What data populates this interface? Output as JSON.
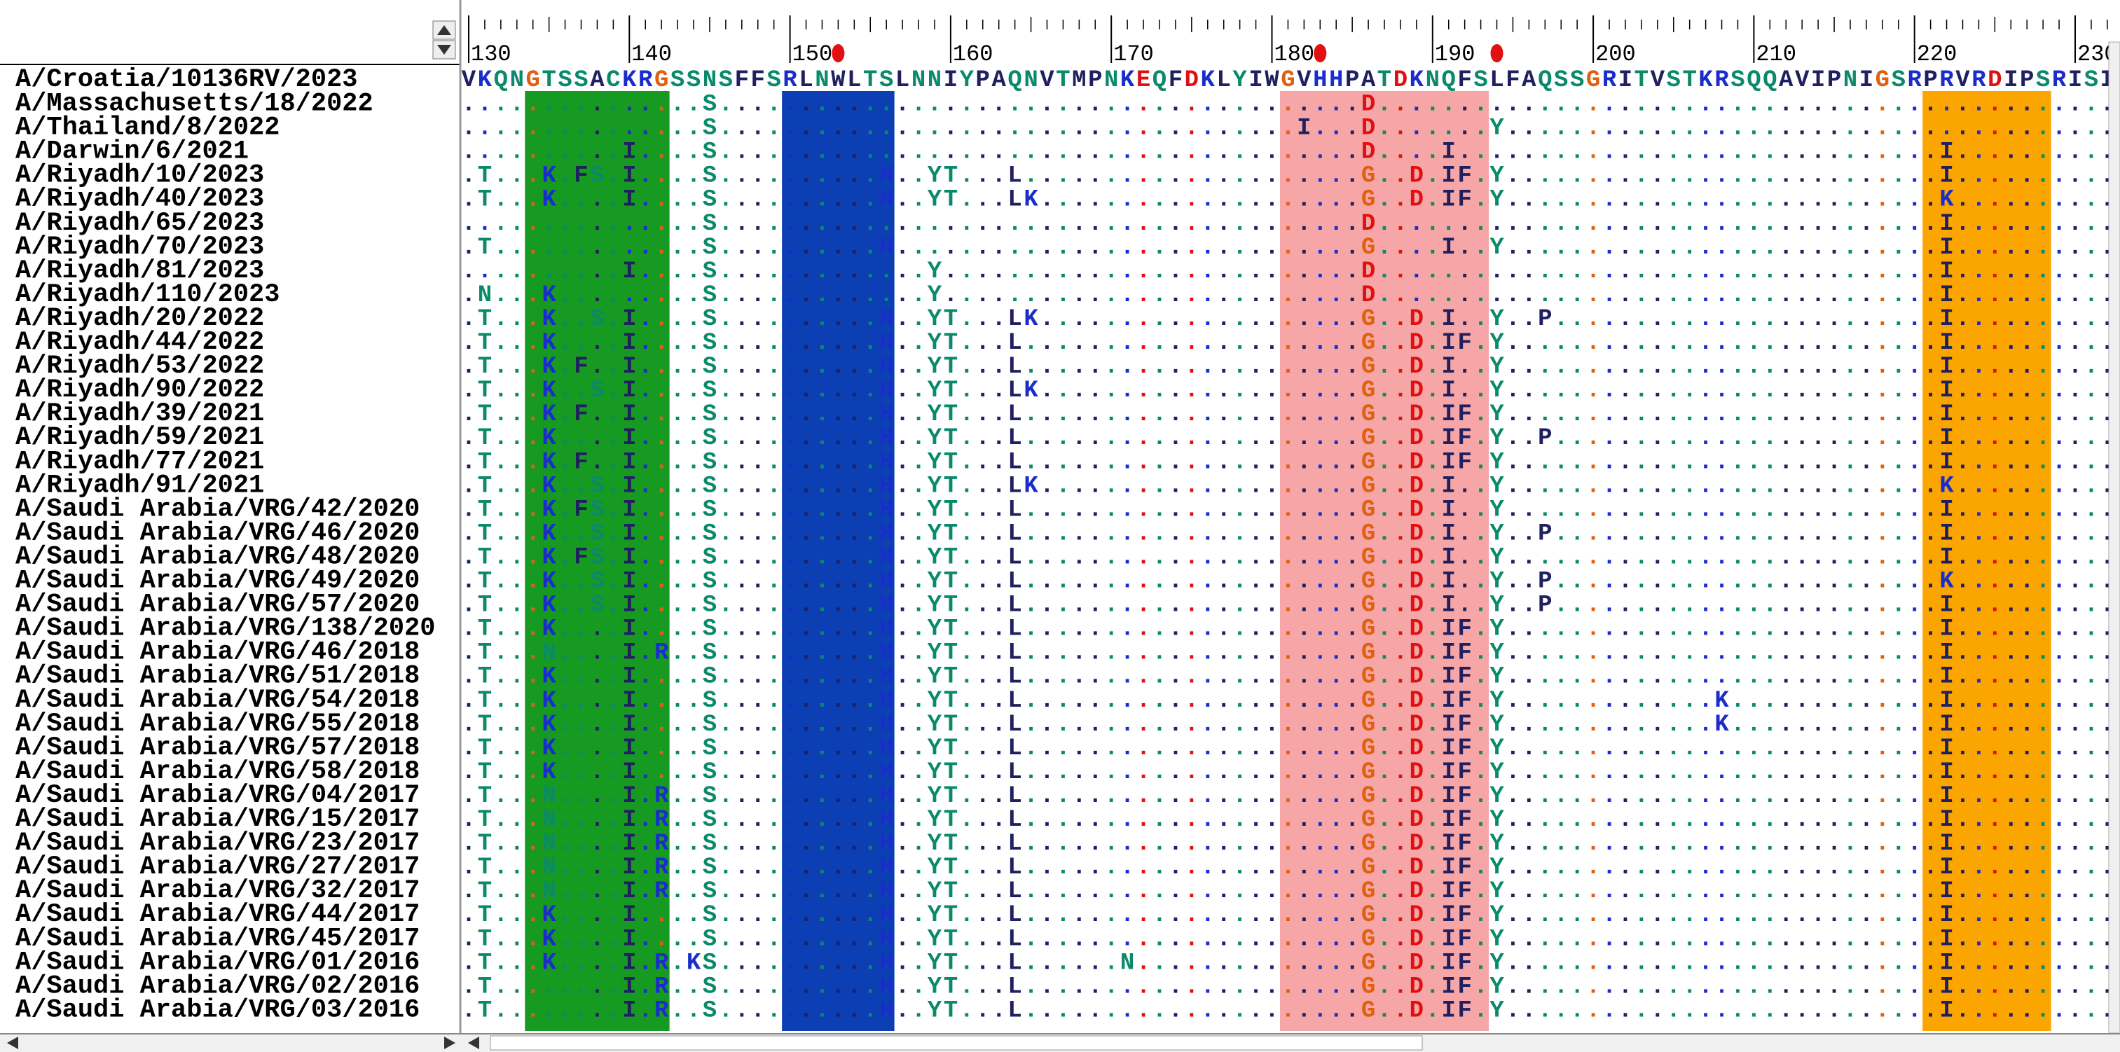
{
  "ruler": {
    "labels": [
      130,
      140,
      150,
      160,
      170,
      180,
      190,
      200,
      210,
      220,
      230
    ],
    "markers": [
      153,
      183,
      194
    ]
  },
  "highlights": [
    {
      "from": 134,
      "to": 142,
      "color": "#169a22"
    },
    {
      "from": 150,
      "to": 156,
      "color": "#0b3fb3"
    },
    {
      "from": 181,
      "to": 193,
      "color": "#f6a6a6"
    },
    {
      "from": 221,
      "to": 228,
      "color": "#fba500"
    }
  ],
  "reference": {
    "name": "A/Croatia/10136RV/2023",
    "sequence": "VKQNGTSSACKRGSSNSFFSRLNWLTSLNNIYPAQNVTMPNKEQFDKLYIWGVHHPATDKNQFSLFAQSSGRITVSTKRSQQAVIPNIGSRPRVRDIPSRISI"
  },
  "rows": [
    {
      "name": "A/Massachusetts/18/2022",
      "sequence": "...............S........................................D.............................................."
    },
    {
      "name": "A/Thailand/8/2022",
      "sequence": "...............S....................................I...D.......Y......................................"
    },
    {
      "name": "A/Darwin/6/2021",
      "sequence": "..........I....S........................................D....I..............................I.........."
    },
    {
      "name": "A/Riyadh/10/2023",
      "sequence": ".T...K.FS.I....S..........H..YT...L.....................G..D.IF.Y...........................I.........."
    },
    {
      "name": "A/Riyadh/40/2023",
      "sequence": ".T...K....I....S..........H..YT...LK....................G..D.IF.Y...........................K.........."
    },
    {
      "name": "A/Riyadh/65/2023",
      "sequence": "...............S........................................D...................................I.........."
    },
    {
      "name": "A/Riyadh/70/2023",
      "sequence": ".T.............S..........H.............................G....I..Y...........................I.........."
    },
    {
      "name": "A/Riyadh/81/2023",
      "sequence": "..........I....S.............Y..........................D...................................I.........."
    },
    {
      "name": "A/Riyadh/110/2023",
      "sequence": ".N...K.........S.............Y..........................D...................................I.........."
    },
    {
      "name": "A/Riyadh/20/2022",
      "sequence": ".T...K..S.I....S..........H..YT...LK....................G..D.I..Y..P........................I.........."
    },
    {
      "name": "A/Riyadh/44/2022",
      "sequence": ".T...K....I....S..........H..YT...L.....................G..D.IF.Y...........................I.........."
    },
    {
      "name": "A/Riyadh/53/2022",
      "sequence": ".T...K.F..I....S..........H..YT...L.....................G..D.I..Y...........................I.........."
    },
    {
      "name": "A/Riyadh/90/2022",
      "sequence": ".T...K..S.I....S..........H..YT...LK....................G..D.I..Y...........................I.........."
    },
    {
      "name": "A/Riyadh/39/2021",
      "sequence": ".T...K.F..I....S..........H..YT...L.....................G..D.IF.Y...........................I.........."
    },
    {
      "name": "A/Riyadh/59/2021",
      "sequence": ".T...K....I....S..........H..YT...L.....................G..D.IF.Y..P........................I.........."
    },
    {
      "name": "A/Riyadh/77/2021",
      "sequence": ".T...K.F..I....S..........H..YT...L.....................G..D.IF.Y...........................I.........."
    },
    {
      "name": "A/Riyadh/91/2021",
      "sequence": ".T...K..S.I....S..........H..YT...LK....................G..D.I..Y...........................K.........."
    },
    {
      "name": "A/Saudi Arabia/VRG/42/2020",
      "sequence": ".T...K.FS.I....S..........H..YT...L.....................G..D.I..Y...........................I.........."
    },
    {
      "name": "A/Saudi Arabia/VRG/46/2020",
      "sequence": ".T...K..S.I....S..........H..YT...L.....................G..D.I..Y..P........................I.........."
    },
    {
      "name": "A/Saudi Arabia/VRG/48/2020",
      "sequence": ".T...K.FS.I....S..........H..YT...L.....................G..D.I..Y...........................I.........."
    },
    {
      "name": "A/Saudi Arabia/VRG/49/2020",
      "sequence": ".T...K..S.I....S..........H..YT...L.....................G..D.I..Y..P........................K.........."
    },
    {
      "name": "A/Saudi Arabia/VRG/57/2020",
      "sequence": ".T...K..S.I....S..........H..YT...L.....................G..D.I..Y..P........................I.........."
    },
    {
      "name": "A/Saudi Arabia/VRG/138/2020",
      "sequence": ".T...K....I....S..........H..YT...L.....................G..D.IF.Y...........................I.........."
    },
    {
      "name": "A/Saudi Arabia/VRG/46/2018",
      "sequence": ".T...N....I.R..S..........H..YT...L.....................G..D.IF.Y...........................I.........."
    },
    {
      "name": "A/Saudi Arabia/VRG/51/2018",
      "sequence": ".T...K....I....S..........H..YT...L.....................G..D.IF.Y...........................I.........."
    },
    {
      "name": "A/Saudi Arabia/VRG/54/2018",
      "sequence": ".T...K....I....S..........H..YT...L.....................G..D.IF.Y.............K.............I.........."
    },
    {
      "name": "A/Saudi Arabia/VRG/55/2018",
      "sequence": ".T...K....I....S..........H..YT...L.....................G..D.IF.Y.............K.............I.........."
    },
    {
      "name": "A/Saudi Arabia/VRG/57/2018",
      "sequence": ".T...K....I....S..........H..YT...L.....................G..D.IF.Y...........................I.........."
    },
    {
      "name": "A/Saudi Arabia/VRG/58/2018",
      "sequence": ".T...K....I....S..........H..YT...L.....................G..D.IF.Y...........................I.........."
    },
    {
      "name": "A/Saudi Arabia/VRG/04/2017",
      "sequence": ".T...N....I.R..S..........H..YT...L.....................G..D.IF.Y...........................I.........."
    },
    {
      "name": "A/Saudi Arabia/VRG/15/2017",
      "sequence": ".T...N....I.R..S..........H..YT...L.....................G..D.IF.Y...........................I.........."
    },
    {
      "name": "A/Saudi Arabia/VRG/23/2017",
      "sequence": ".T...N....I.R..S..........H..YT...L.....................G..D.IF.Y...........................I.........."
    },
    {
      "name": "A/Saudi Arabia/VRG/27/2017",
      "sequence": ".T...N....I.R..S..........H..YT...L.....................G..D.IF.Y...........................I.........."
    },
    {
      "name": "A/Saudi Arabia/VRG/32/2017",
      "sequence": ".T...N....I.R..S..........H..YT...L.....................G..D.IF.Y...........................I.........."
    },
    {
      "name": "A/Saudi Arabia/VRG/44/2017",
      "sequence": ".T...K....I....S..........H..YT...L.....................G..D.IF.Y...........................I.........."
    },
    {
      "name": "A/Saudi Arabia/VRG/45/2017",
      "sequence": ".T...K....I....S..........H..YT...L.....................G..D.IF.Y...........................I.........."
    },
    {
      "name": "A/Saudi Arabia/VRG/01/2016",
      "sequence": ".T...K....I.R.KS..........H..YT...L......N..............G..D.IF.Y...........................I.........."
    },
    {
      "name": "A/Saudi Arabia/VRG/02/2016",
      "sequence": ".T........I.R..S..........H..YT...L.....................G..D.IF.Y...........................I.........."
    },
    {
      "name": "A/Saudi Arabia/VRG/03/2016",
      "sequence": ".T........I.R..S..........H..YT...L.....................G..D.IF.Y...........................I.........."
    }
  ]
}
